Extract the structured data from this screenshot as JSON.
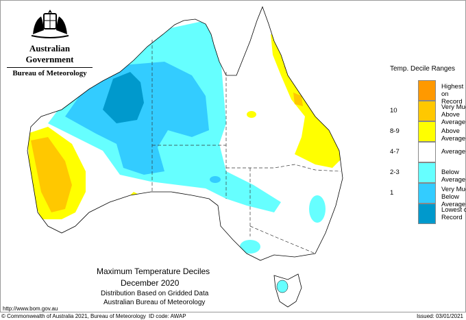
{
  "header": {
    "government": "Australian Government",
    "bureau": "Bureau of Meteorology"
  },
  "title": {
    "line1": "Maximum Temperature Deciles",
    "line2": "December 2020",
    "line3": "Distribution Based on Gridded Data",
    "line4": "Australian Bureau of Meteorology"
  },
  "legend": {
    "title": "Temp. Decile Ranges",
    "items": [
      {
        "range": "",
        "label": "Highest on Record",
        "color": "#ff9900"
      },
      {
        "range": "10",
        "label": "Very Much Above Average",
        "color": "#ffc800"
      },
      {
        "range": "8-9",
        "label": "Above Average",
        "color": "#ffff00"
      },
      {
        "range": "4-7",
        "label": "Average",
        "color": "#ffffff"
      },
      {
        "range": "2-3",
        "label": "Below Average",
        "color": "#66ffff"
      },
      {
        "range": "1",
        "label": "Very Much Below Average",
        "color": "#33ccff"
      },
      {
        "range": "",
        "label": "Lowest on Record",
        "color": "#0099cc"
      }
    ]
  },
  "footer": {
    "url": "http://www.bom.gov.au",
    "copyright": "© Commonwealth of Australia 2021, Bureau of Meteorology",
    "id_code": "ID code: AWAP",
    "issued": "Issued: 03/01/2021"
  }
}
